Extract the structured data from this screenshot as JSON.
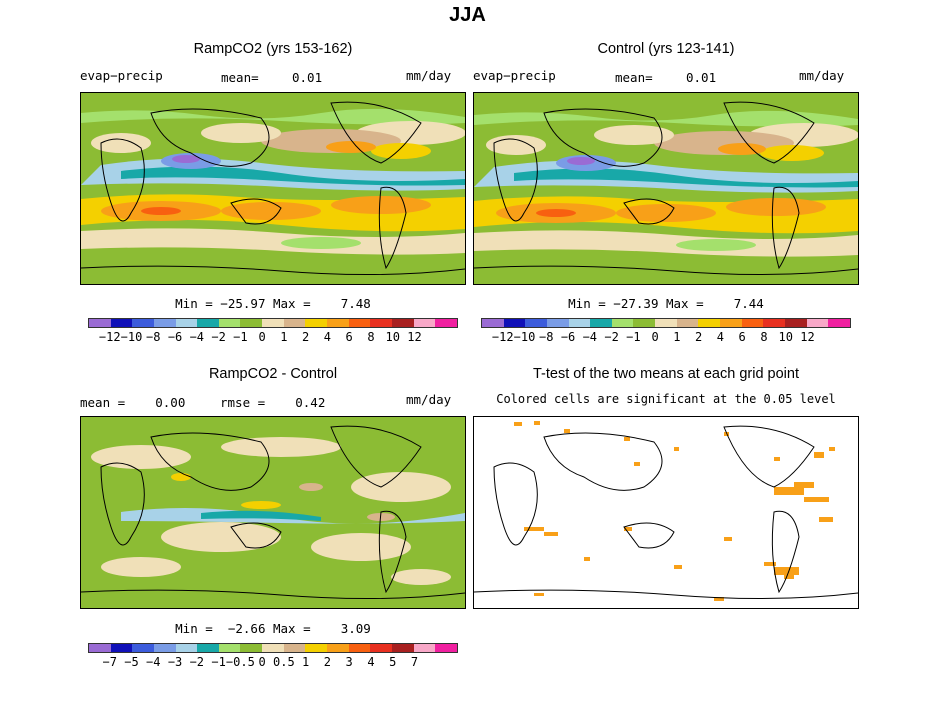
{
  "title": "JJA",
  "panels": {
    "ramp": {
      "title": "RampCO2 (yrs 153-162)",
      "var": "evap−precip",
      "mean_label": "mean=",
      "mean_value": "0.01",
      "unit": "mm/day",
      "minmax": "Min = −25.97 Max =    7.48"
    },
    "control": {
      "title": "Control (yrs 123-141)",
      "var": "evap−precip",
      "mean_label": "mean=",
      "mean_value": "0.01",
      "unit": "mm/day",
      "minmax": "Min = −27.39 Max =    7.44"
    },
    "diff": {
      "title": "RampCO2 - Control",
      "mean_text": "mean =    0.00",
      "rmse_text": "rmse =    0.42",
      "unit": "mm/day",
      "minmax": "Min =  −2.66 Max =    3.09"
    },
    "ttest": {
      "title": "T-test of the two means at each grid point",
      "subtitle": "Colored cells are significant at the 0.05 level"
    }
  },
  "colorbars": {
    "top": {
      "colors": [
        "#9a6bd4",
        "#1010b8",
        "#3c5cdc",
        "#7a9ce6",
        "#a8d2e8",
        "#18a8a8",
        "#a4e06c",
        "#8cbc34",
        "#f0e0b8",
        "#d8b48c",
        "#f4d000",
        "#f8a018",
        "#f86010",
        "#e83020",
        "#a82020",
        "#f8a8c8",
        "#f020a0"
      ],
      "tick_labels": [
        "−12",
        "−10",
        "−8",
        "−6",
        "−4",
        "−2",
        "−1",
        "0",
        "1",
        "2",
        "4",
        "6",
        "8",
        "10",
        "12"
      ]
    },
    "bottom": {
      "colors": [
        "#9a6bd4",
        "#1010b8",
        "#3c5cdc",
        "#7a9ce6",
        "#a8d2e8",
        "#18a8a8",
        "#a4e06c",
        "#8cbc34",
        "#f0e0b8",
        "#d8b48c",
        "#f4d000",
        "#f8a018",
        "#f86010",
        "#e83020",
        "#a82020",
        "#f8a8c8",
        "#f020a0"
      ],
      "tick_labels": [
        "−7",
        "−5",
        "−4",
        "−3",
        "−2",
        "−1",
        "−0.5",
        "0",
        "0.5",
        "1",
        "2",
        "3",
        "4",
        "5",
        "7"
      ]
    }
  },
  "colors": {
    "green": "#8cbc34",
    "light_green": "#a4e06c",
    "tan": "#f0e0b8",
    "brown": "#d8b48c",
    "yellow": "#f4d000",
    "orange": "#f8a018",
    "red_orange": "#f86010",
    "teal": "#18a8a8",
    "light_blue": "#a8d2e8",
    "mid_blue": "#7a9ce6",
    "blue": "#3c5cdc",
    "purple": "#9a6bd4",
    "signif": "#f8a018"
  }
}
